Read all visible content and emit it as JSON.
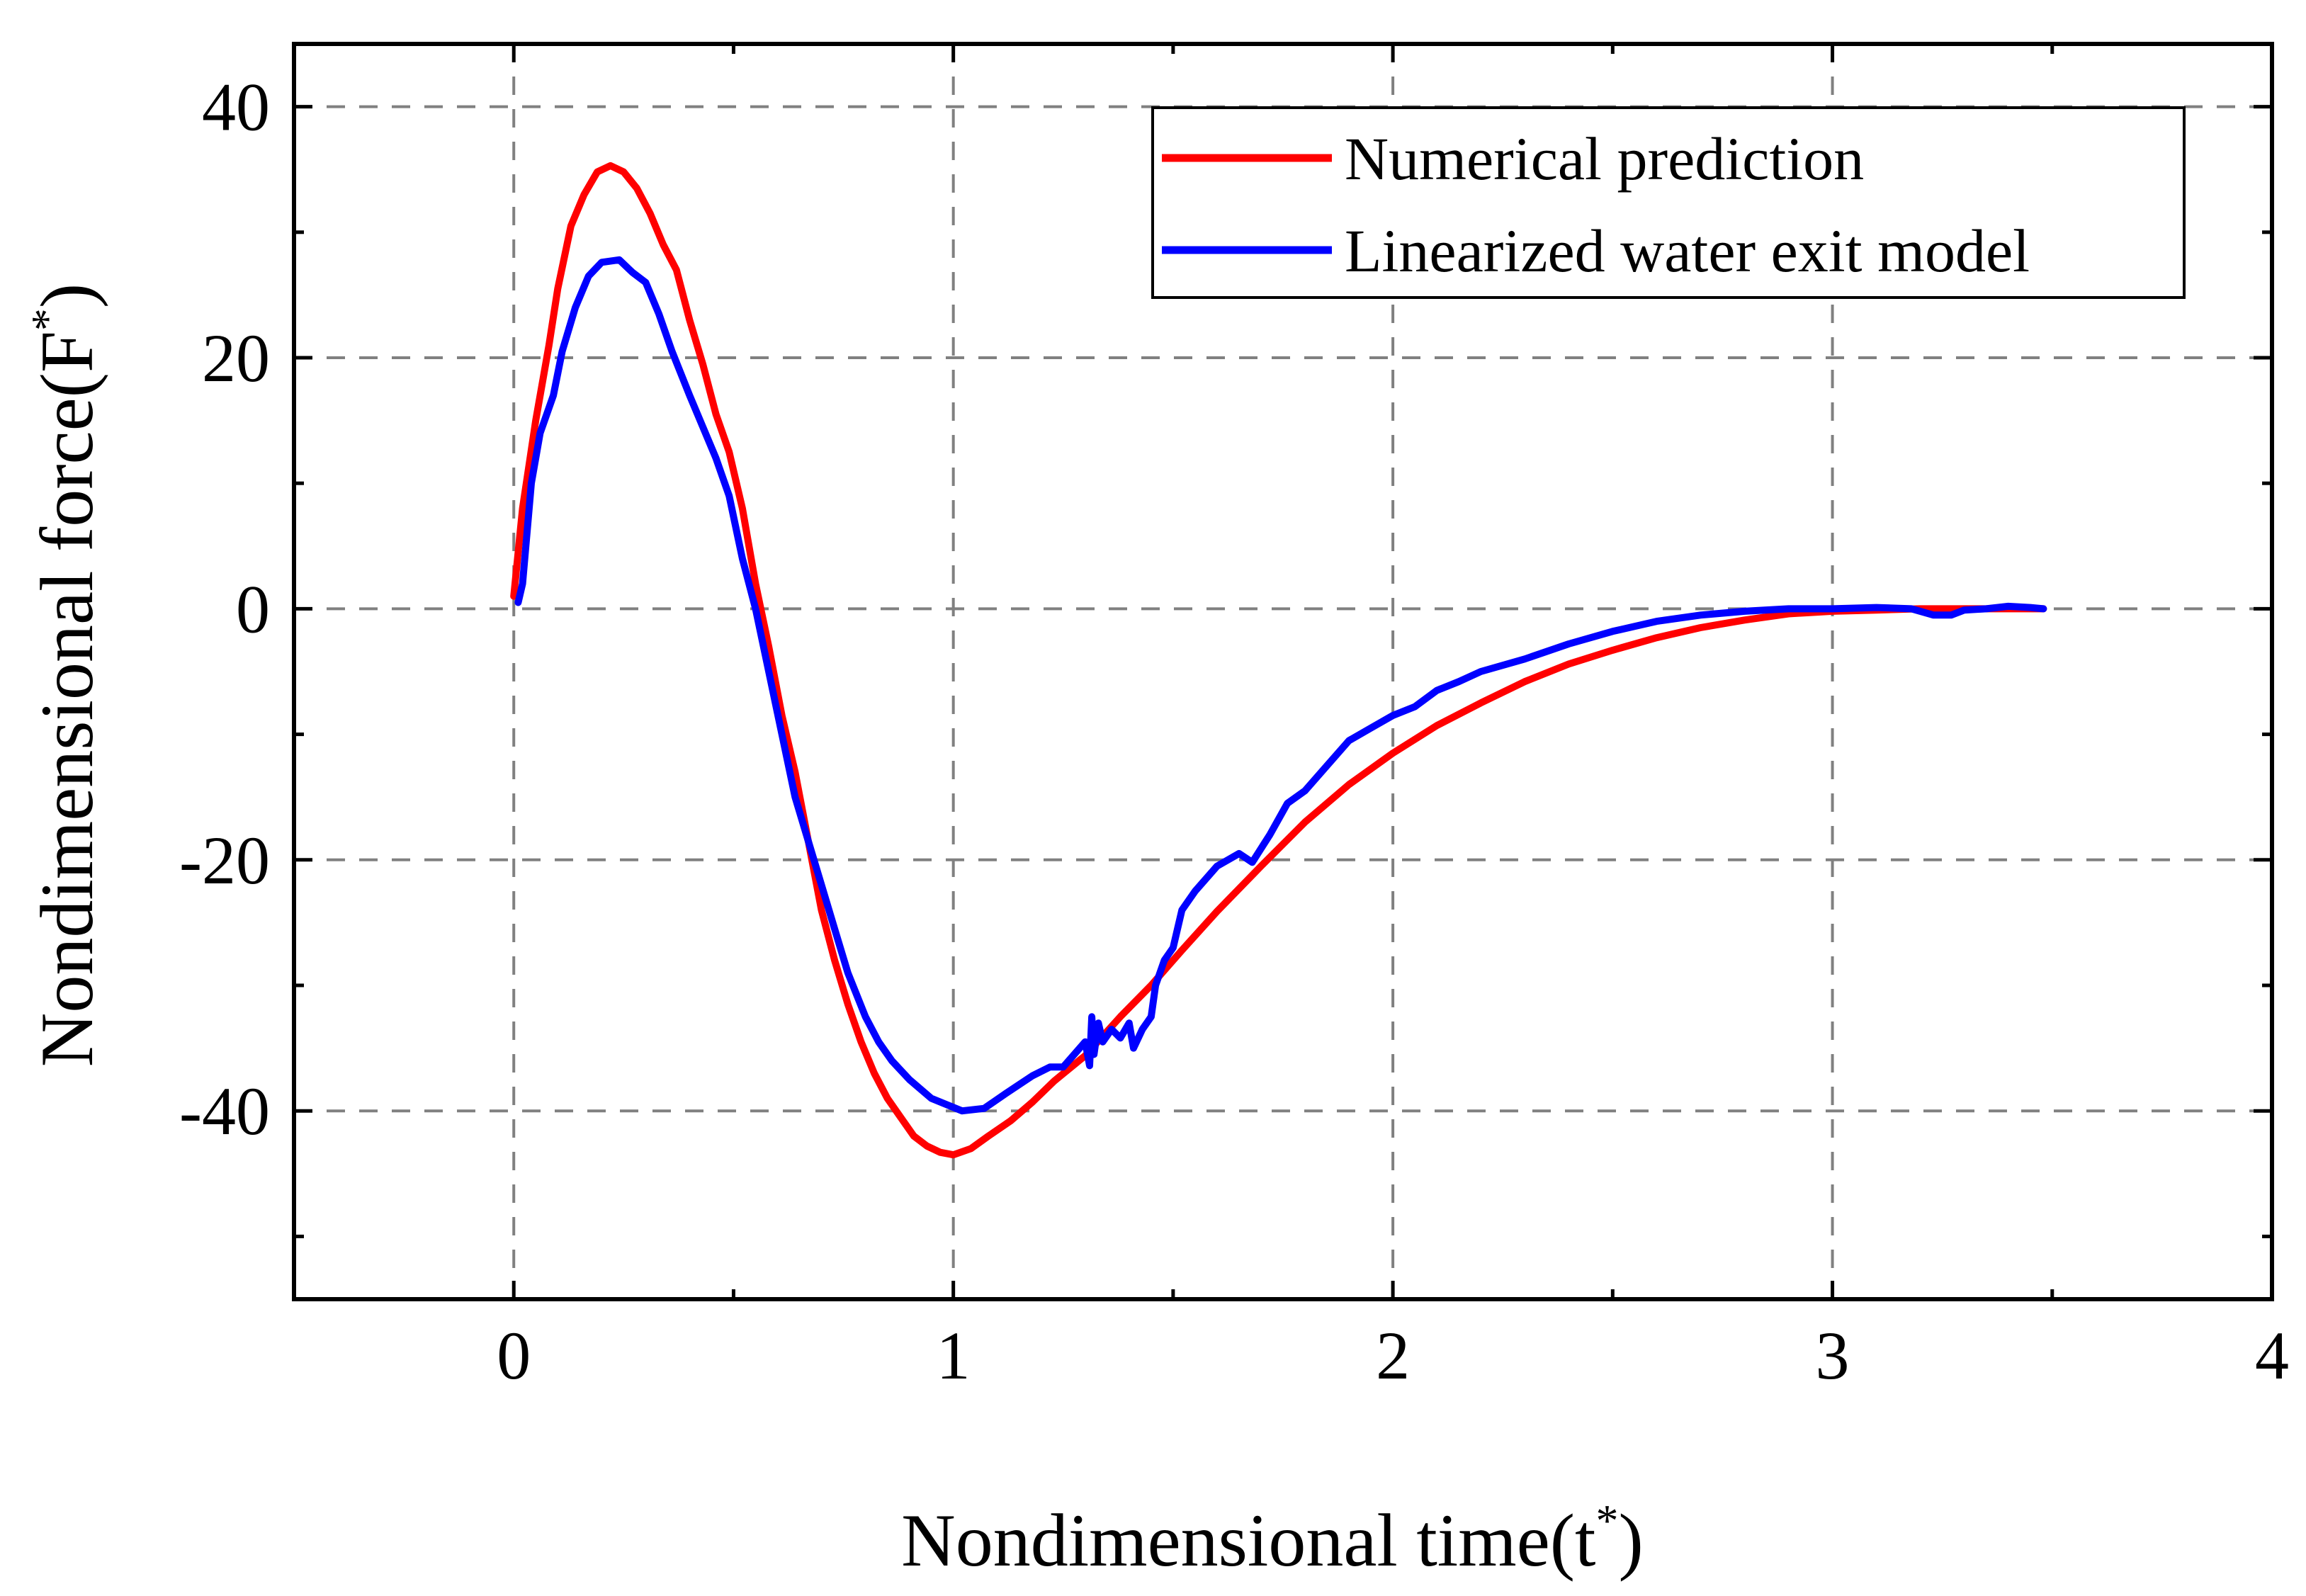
{
  "chart_data": {
    "type": "line",
    "xlabel": "Nondimensional time(t",
    "xlabel_sup": "*",
    "xlabel_close": ")",
    "ylabel": "Nondimensional force(F",
    "ylabel_sup": "*",
    "ylabel_close": ")",
    "xlim": [
      -0.5,
      4
    ],
    "ylim": [
      -55,
      45
    ],
    "xticks": [
      0,
      1,
      2,
      3,
      4
    ],
    "yticks": [
      -40,
      -20,
      0,
      20,
      40
    ],
    "xtick_labels": [
      "0",
      "1",
      "2",
      "3",
      "4"
    ],
    "ytick_labels": [
      "-40",
      "-20",
      "0",
      "20",
      "40"
    ],
    "x_minor_ticks": [
      -0.5,
      0.5,
      1.5,
      2.5,
      3.5
    ],
    "y_minor_ticks": [
      -50,
      -30,
      -10,
      10,
      30
    ],
    "grid": true,
    "grid_color": "#808080",
    "legend_position": "top-right",
    "series": [
      {
        "name": "Numerical prediction",
        "color": "#ff0000",
        "points": [
          [
            0,
            1
          ],
          [
            0.02,
            8
          ],
          [
            0.05,
            15
          ],
          [
            0.08,
            21
          ],
          [
            0.1,
            25.5
          ],
          [
            0.13,
            30.5
          ],
          [
            0.16,
            33
          ],
          [
            0.19,
            34.8
          ],
          [
            0.22,
            35.3
          ],
          [
            0.25,
            34.8
          ],
          [
            0.28,
            33.5
          ],
          [
            0.31,
            31.5
          ],
          [
            0.34,
            29
          ],
          [
            0.37,
            27
          ],
          [
            0.4,
            23
          ],
          [
            0.43,
            19.5
          ],
          [
            0.46,
            15.5
          ],
          [
            0.49,
            12.5
          ],
          [
            0.52,
            8
          ],
          [
            0.55,
            2
          ],
          [
            0.58,
            -3
          ],
          [
            0.61,
            -8.5
          ],
          [
            0.64,
            -13
          ],
          [
            0.67,
            -18.5
          ],
          [
            0.7,
            -24
          ],
          [
            0.73,
            -28
          ],
          [
            0.76,
            -31.5
          ],
          [
            0.79,
            -34.5
          ],
          [
            0.82,
            -37
          ],
          [
            0.85,
            -39
          ],
          [
            0.88,
            -40.5
          ],
          [
            0.91,
            -42
          ],
          [
            0.94,
            -42.8
          ],
          [
            0.97,
            -43.3
          ],
          [
            1,
            -43.5
          ],
          [
            1.04,
            -43
          ],
          [
            1.08,
            -42
          ],
          [
            1.13,
            -40.8
          ],
          [
            1.18,
            -39.3
          ],
          [
            1.23,
            -37.6
          ],
          [
            1.3,
            -35.6
          ],
          [
            1.38,
            -32.5
          ],
          [
            1.45,
            -30
          ],
          [
            1.52,
            -27.2
          ],
          [
            1.6,
            -24.1
          ],
          [
            1.7,
            -20.5
          ],
          [
            1.8,
            -17
          ],
          [
            1.9,
            -14
          ],
          [
            2,
            -11.5
          ],
          [
            2.1,
            -9.3
          ],
          [
            2.2,
            -7.5
          ],
          [
            2.3,
            -5.8
          ],
          [
            2.4,
            -4.4
          ],
          [
            2.5,
            -3.3
          ],
          [
            2.6,
            -2.3
          ],
          [
            2.7,
            -1.5
          ],
          [
            2.8,
            -0.9
          ],
          [
            2.9,
            -0.4
          ],
          [
            3,
            -0.2
          ],
          [
            3.1,
            -0.1
          ],
          [
            3.2,
            0
          ],
          [
            3.3,
            0
          ],
          [
            3.4,
            0
          ],
          [
            3.48,
            0
          ]
        ]
      },
      {
        "name": "Linearized water exit model",
        "color": "#0000ff",
        "points": [
          [
            0.01,
            0.5
          ],
          [
            0.02,
            2
          ],
          [
            0.04,
            10
          ],
          [
            0.06,
            14
          ],
          [
            0.09,
            17
          ],
          [
            0.11,
            20.5
          ],
          [
            0.14,
            24
          ],
          [
            0.17,
            26.5
          ],
          [
            0.2,
            27.6
          ],
          [
            0.24,
            27.8
          ],
          [
            0.27,
            26.8
          ],
          [
            0.3,
            26
          ],
          [
            0.33,
            23.5
          ],
          [
            0.36,
            20.5
          ],
          [
            0.4,
            17
          ],
          [
            0.43,
            14.5
          ],
          [
            0.46,
            12
          ],
          [
            0.49,
            9
          ],
          [
            0.52,
            4
          ],
          [
            0.55,
            0
          ],
          [
            0.58,
            -5
          ],
          [
            0.61,
            -10
          ],
          [
            0.64,
            -15
          ],
          [
            0.67,
            -18.5
          ],
          [
            0.7,
            -22
          ],
          [
            0.73,
            -25.5
          ],
          [
            0.76,
            -29
          ],
          [
            0.8,
            -32.5
          ],
          [
            0.83,
            -34.5
          ],
          [
            0.86,
            -36
          ],
          [
            0.9,
            -37.5
          ],
          [
            0.95,
            -39
          ],
          [
            1.02,
            -40
          ],
          [
            1.07,
            -39.8
          ],
          [
            1.12,
            -38.6
          ],
          [
            1.18,
            -37.2
          ],
          [
            1.22,
            -36.5
          ],
          [
            1.25,
            -36.5
          ],
          [
            1.3,
            -34.5
          ],
          [
            1.31,
            -36.4
          ],
          [
            1.315,
            -32.5
          ],
          [
            1.32,
            -35.5
          ],
          [
            1.33,
            -33
          ],
          [
            1.34,
            -34.5
          ],
          [
            1.36,
            -33.5
          ],
          [
            1.38,
            -34.2
          ],
          [
            1.4,
            -33
          ],
          [
            1.41,
            -35
          ],
          [
            1.43,
            -33.5
          ],
          [
            1.45,
            -32.5
          ],
          [
            1.46,
            -30
          ],
          [
            1.48,
            -28
          ],
          [
            1.5,
            -27
          ],
          [
            1.52,
            -24
          ],
          [
            1.55,
            -22.5
          ],
          [
            1.6,
            -20.5
          ],
          [
            1.65,
            -19.5
          ],
          [
            1.68,
            -20.2
          ],
          [
            1.72,
            -18
          ],
          [
            1.76,
            -15.5
          ],
          [
            1.8,
            -14.5
          ],
          [
            1.85,
            -12.5
          ],
          [
            1.9,
            -10.5
          ],
          [
            1.95,
            -9.5
          ],
          [
            2,
            -8.5
          ],
          [
            2.05,
            -7.8
          ],
          [
            2.1,
            -6.5
          ],
          [
            2.15,
            -5.8
          ],
          [
            2.2,
            -5
          ],
          [
            2.3,
            -4
          ],
          [
            2.4,
            -2.8
          ],
          [
            2.5,
            -1.8
          ],
          [
            2.6,
            -1
          ],
          [
            2.7,
            -0.5
          ],
          [
            2.8,
            -0.2
          ],
          [
            2.9,
            0
          ],
          [
            3,
            0
          ],
          [
            3.1,
            0.1
          ],
          [
            3.18,
            0
          ],
          [
            3.23,
            -0.5
          ],
          [
            3.27,
            -0.5
          ],
          [
            3.3,
            -0.1
          ],
          [
            3.35,
            0
          ],
          [
            3.4,
            0.2
          ],
          [
            3.45,
            0.1
          ],
          [
            3.48,
            0
          ]
        ]
      }
    ]
  }
}
